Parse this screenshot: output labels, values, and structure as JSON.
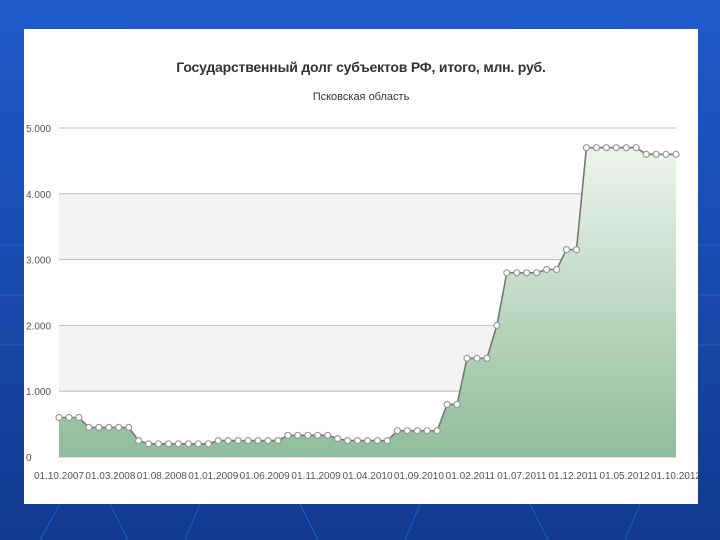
{
  "chart_data": {
    "type": "area",
    "title": "Государственный долг субъектов РФ, итого, млн. руб.",
    "subtitle": "Псковская область",
    "xlabel": "",
    "ylabel": "",
    "ylim": [
      0,
      5000
    ],
    "y_ticks": [
      "0",
      "1.000",
      "2.000",
      "3.000",
      "4.000",
      "5.000"
    ],
    "x_ticks": [
      "01.10.2007",
      "01.03.2008",
      "01.08.2008",
      "01.01.2009",
      "01.06.2009",
      "01.11.2009",
      "01.04.2010",
      "01.09.2010",
      "01.02.2011",
      "01.07.2011",
      "01.12.2011",
      "01.05.2012",
      "01.10.2012"
    ],
    "grid": true,
    "legend": "none",
    "series": [
      {
        "values": [
          600,
          600,
          600,
          450,
          450,
          450,
          450,
          450,
          250,
          200,
          200,
          200,
          200,
          200,
          200,
          200,
          250,
          250,
          250,
          250,
          250,
          250,
          250,
          330,
          330,
          330,
          330,
          330,
          280,
          250,
          250,
          250,
          250,
          250,
          400,
          400,
          400,
          400,
          400,
          800,
          800,
          1500,
          1500,
          1500,
          2000,
          2800,
          2800,
          2800,
          2800,
          2850,
          2850,
          3150,
          3150,
          4700,
          4700,
          4700,
          4700,
          4700,
          4700,
          4600,
          4600,
          4600,
          4600
        ]
      }
    ],
    "colors": {
      "area_top": "#eef4ef",
      "area_bottom": "#8fbd99",
      "line": "#777777",
      "marker_fill": "#ffffff",
      "grid": "#bbbbbb",
      "band": "#f3f3f3"
    }
  }
}
